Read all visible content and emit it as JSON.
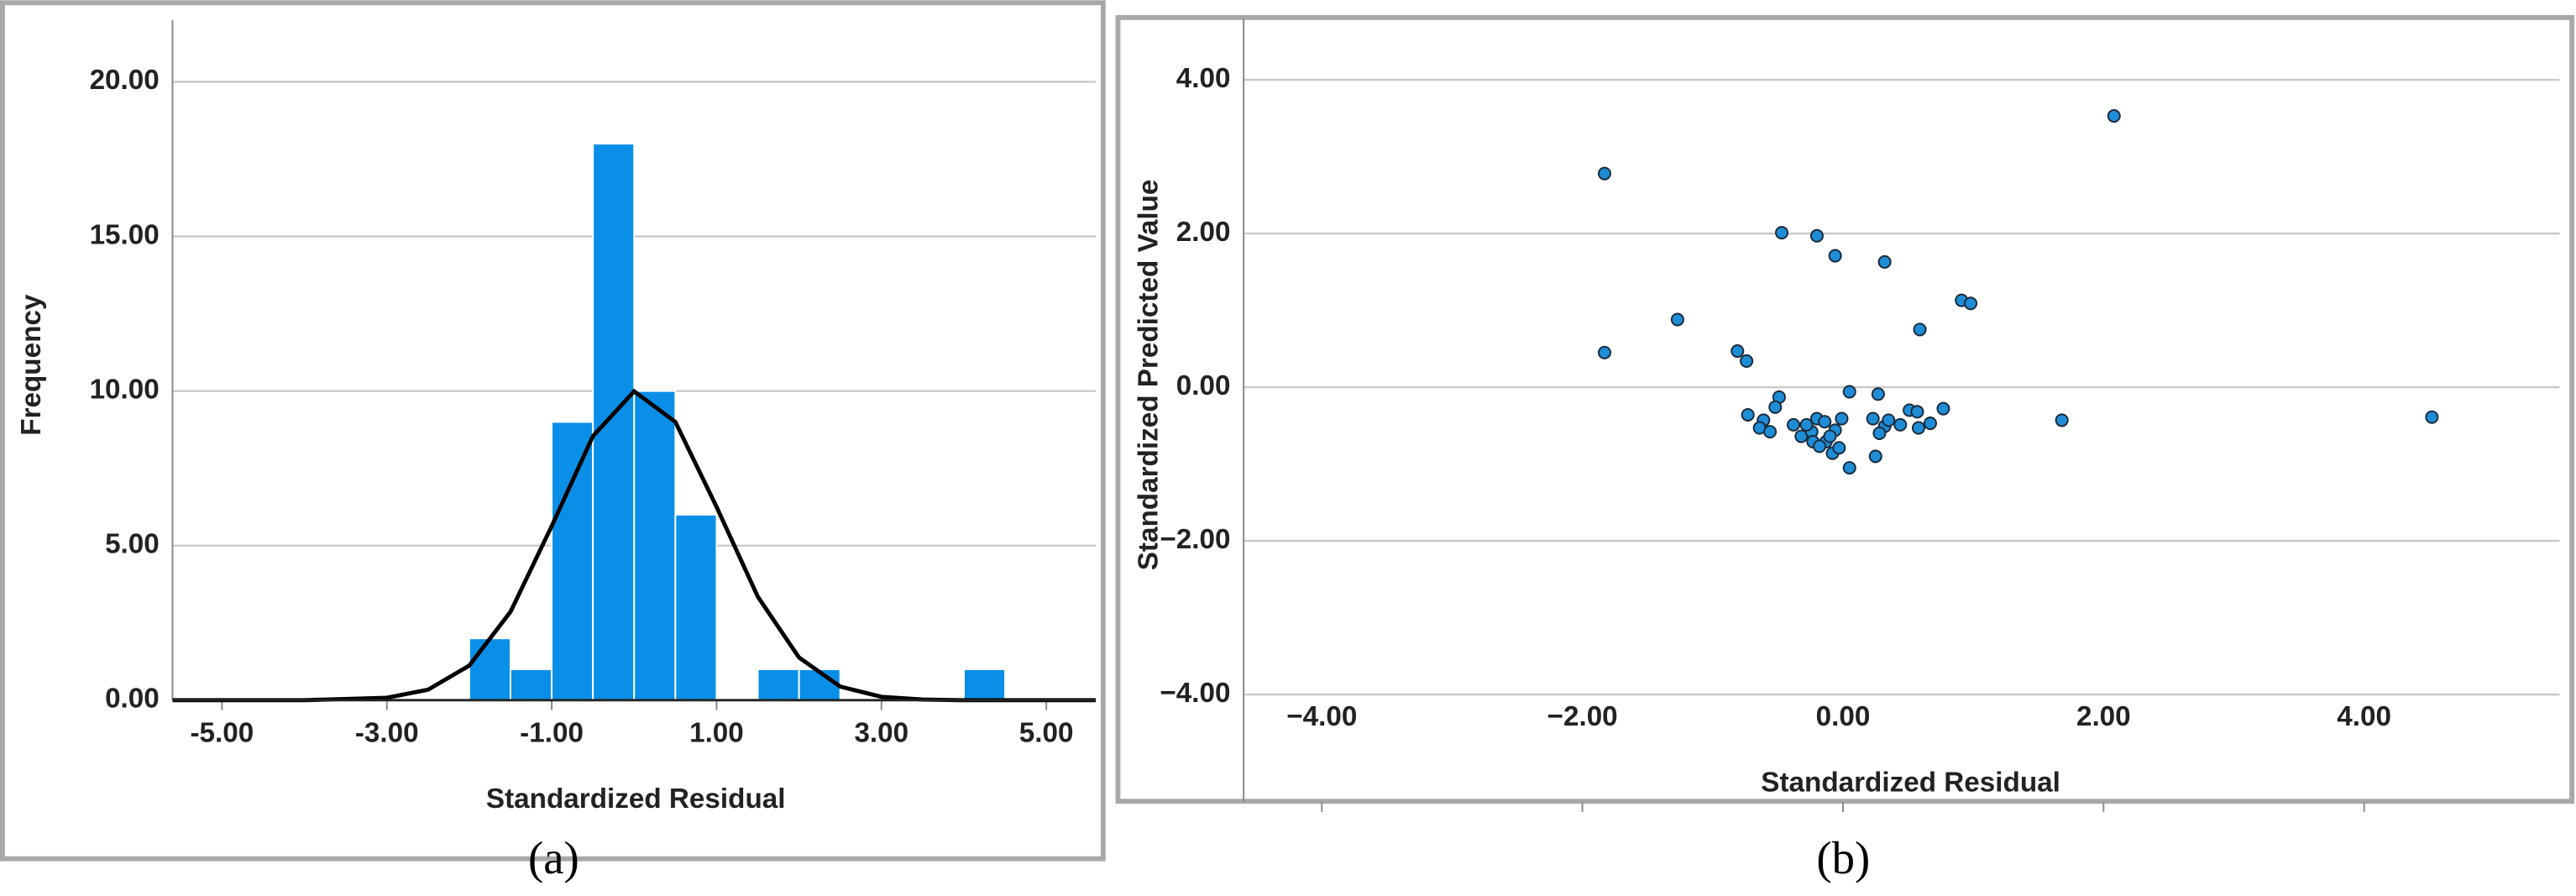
{
  "chart_data": [
    {
      "type": "histogram",
      "caption": "(a)",
      "x_label": "Standardized Residual",
      "y_label": "Frequency",
      "bins": [
        -2,
        -1.5,
        -1,
        -0.5,
        0,
        0.5,
        1,
        1.5,
        2,
        2.5,
        3,
        3.5,
        4,
        4.5
      ],
      "values": [
        2,
        1,
        9,
        18,
        10,
        6,
        0,
        1,
        1,
        0,
        0,
        0,
        1
      ],
      "color": "#0a8fe8",
      "normal_curve": {
        "x": [
          -5.6,
          -4,
          -3,
          -2.5,
          -2,
          -1.5,
          -1,
          -0.5,
          0,
          0.5,
          1,
          1.5,
          2,
          2.5,
          3,
          3.5,
          4,
          5.6
        ],
        "values": [
          0,
          0,
          0.08,
          0.34,
          1.12,
          2.86,
          5.63,
          8.54,
          9.99,
          9.0,
          6.25,
          3.35,
          1.38,
          0.44,
          0.11,
          0.02,
          0,
          0
        ],
        "color": "#000000"
      },
      "xlim": [
        -5.6,
        5.6
      ],
      "xticks": [
        {
          "value": -5,
          "label": "-5.00"
        },
        {
          "value": -3,
          "label": "-3.00"
        },
        {
          "value": -1,
          "label": "-1.00"
        },
        {
          "value": 1,
          "label": "1.00"
        },
        {
          "value": 3,
          "label": "3.00"
        },
        {
          "value": 5,
          "label": "5.00"
        }
      ],
      "ylim": [
        0,
        22
      ],
      "yticks": [
        {
          "value": 0,
          "label": "0.00"
        },
        {
          "value": 5,
          "label": "5.00"
        },
        {
          "value": 10,
          "label": "10.00"
        },
        {
          "value": 15,
          "label": "15.00"
        },
        {
          "value": 20,
          "label": "20.00"
        }
      ],
      "grid": true
    },
    {
      "type": "scatter",
      "caption": "(b)",
      "x_label": "Standardized Residual",
      "y_label": "Standardized Predicted Value",
      "color": "#1f8dd6",
      "x": [
        -1.83,
        -1.83,
        -1.27,
        -0.47,
        -0.2,
        -0.06,
        0.32,
        0.91,
        0.98,
        0.59,
        2.08,
        -0.81,
        -0.74,
        -0.73,
        1.68,
        4.52,
        -0.49,
        -0.52,
        -0.61,
        -0.64,
        -0.56,
        -0.38,
        -0.32,
        -0.24,
        -0.28,
        -0.2,
        -0.14,
        -0.23,
        -0.13,
        -0.18,
        -0.08,
        -0.03,
        0.05,
        0.05,
        -0.01,
        0.23,
        0.27,
        0.25,
        0.32,
        0.35,
        0.44,
        0.58,
        0.67,
        0.51,
        0.77,
        0.57,
        0.28,
        -0.06,
        -0.1
      ],
      "values": [
        2.78,
        0.45,
        0.88,
        2.01,
        1.97,
        1.71,
        1.63,
        1.13,
        1.09,
        0.75,
        3.53,
        0.47,
        0.34,
        -0.36,
        -0.43,
        -0.39,
        -0.13,
        -0.26,
        -0.43,
        -0.53,
        -0.58,
        -0.49,
        -0.64,
        -0.58,
        -0.49,
        -0.41,
        -0.45,
        -0.71,
        -0.71,
        -0.77,
        -0.86,
        -0.79,
        -1.05,
        -0.06,
        -0.41,
        -0.41,
        -0.09,
        -0.9,
        -0.51,
        -0.43,
        -0.49,
        -0.53,
        -0.47,
        -0.3,
        -0.28,
        -0.32,
        -0.6,
        -0.56,
        -0.64
      ],
      "xlim": [
        -4.6,
        5.5
      ],
      "xticks": [
        {
          "value": -4,
          "label": "−4.00"
        },
        {
          "value": -2,
          "label": "−2.00"
        },
        {
          "value": 0,
          "label": "0.00"
        },
        {
          "value": 2,
          "label": "2.00"
        },
        {
          "value": 4,
          "label": "4.00"
        }
      ],
      "ylim": [
        -5.4,
        4.8
      ],
      "yticks": [
        {
          "value": -4,
          "label": "−4.00"
        },
        {
          "value": -2,
          "label": "−2.00"
        },
        {
          "value": 0,
          "label": "0.00"
        },
        {
          "value": 2,
          "label": "2.00"
        },
        {
          "value": 4,
          "label": "4.00"
        }
      ],
      "grid": true
    }
  ]
}
